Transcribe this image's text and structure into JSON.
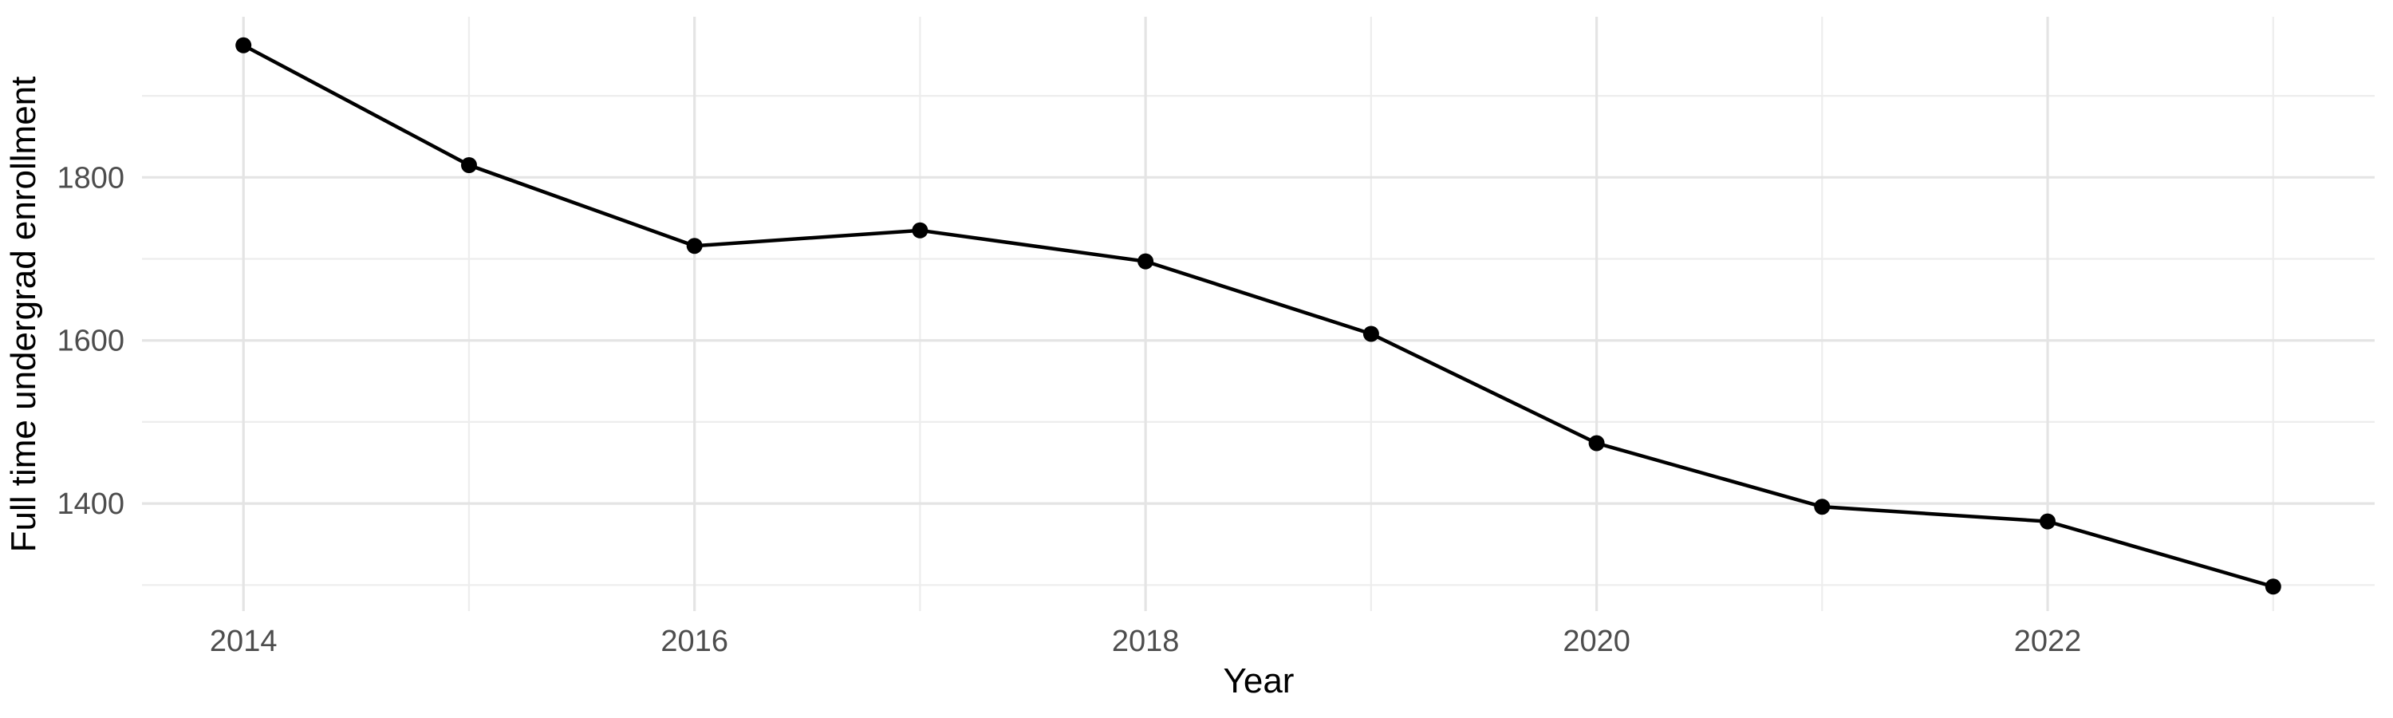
{
  "chart_data": {
    "type": "line",
    "title": "",
    "xlabel": "Year",
    "ylabel": "Full time undergrad enrollment",
    "x": [
      2014,
      2015,
      2016,
      2017,
      2018,
      2019,
      2020,
      2021,
      2022,
      2023
    ],
    "series": [
      {
        "name": "Full time undergrad enrollment",
        "values": [
          1962,
          1815,
          1716,
          1735,
          1697,
          1608,
          1474,
          1396,
          1378,
          1298
        ]
      }
    ],
    "xlim": [
      2013.55,
      2023.45
    ],
    "ylim": [
      1268,
      1997
    ],
    "x_ticks_major": {
      "values": [
        2014,
        2016,
        2018,
        2020,
        2022
      ],
      "labels": [
        "2014",
        "2016",
        "2018",
        "2020",
        "2022"
      ]
    },
    "x_ticks_minor": [
      2015,
      2017,
      2019,
      2021,
      2023
    ],
    "y_ticks_major": {
      "values": [
        1400,
        1600,
        1800
      ],
      "labels": [
        "1400",
        "1600",
        "1800"
      ]
    },
    "y_ticks_minor": [
      1300,
      1500,
      1700,
      1900
    ],
    "grid": true,
    "legend": "none",
    "marker": "filled-circle",
    "style": {
      "background_color": "#FFFFFF",
      "grid_major_color": "#E4E4E4",
      "grid_minor_color": "#EDEDED",
      "line_color": "#000000",
      "point_color": "#000000",
      "point_radius": 10,
      "tick_label_color": "#4D4D4D",
      "axis_title_color": "#000000"
    }
  }
}
